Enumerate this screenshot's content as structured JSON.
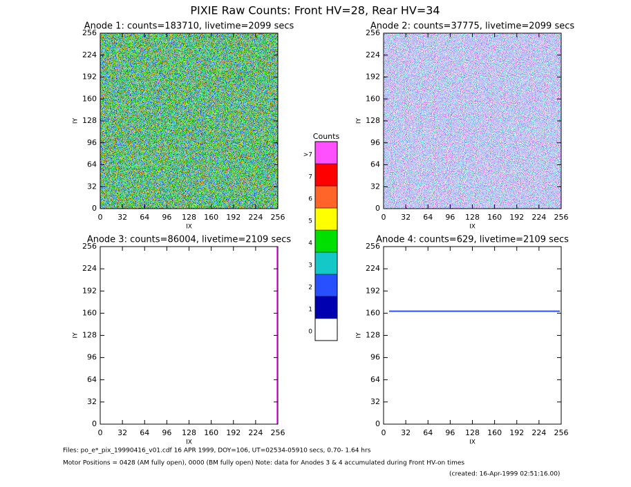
{
  "title": "PIXIE Raw Counts:  Front HV=28, Rear HV=34",
  "chart_data": [
    {
      "type": "heatmap",
      "title": "Anode 1: counts=183710, livetime=2099 secs",
      "xlabel": "IX",
      "ylabel": "IY",
      "xlim": [
        0,
        256
      ],
      "ylim": [
        0,
        256
      ],
      "xticks": [
        0,
        32,
        64,
        96,
        128,
        160,
        192,
        224,
        256
      ],
      "yticks": [
        0,
        32,
        64,
        96,
        128,
        160,
        192,
        224,
        256
      ]
    },
    {
      "type": "heatmap",
      "title": "Anode 2: counts=37775, livetime=2099 secs",
      "xlabel": "IX",
      "ylabel": "IY",
      "xlim": [
        0,
        256
      ],
      "ylim": [
        0,
        256
      ],
      "xticks": [
        0,
        32,
        64,
        96,
        128,
        160,
        192,
        224,
        256
      ],
      "yticks": [
        0,
        32,
        64,
        96,
        128,
        160,
        192,
        224,
        256
      ]
    },
    {
      "type": "heatmap",
      "title": "Anode 3: counts=86004, livetime=2109 secs",
      "xlabel": "IX",
      "ylabel": "IY",
      "xlim": [
        0,
        256
      ],
      "ylim": [
        0,
        256
      ],
      "xticks": [
        0,
        32,
        64,
        96,
        128,
        160,
        192,
        224,
        256
      ],
      "yticks": [
        0,
        32,
        64,
        96,
        128,
        160,
        192,
        224,
        256
      ]
    },
    {
      "type": "heatmap",
      "title": "Anode 4: counts=629, livetime=2109 secs",
      "xlabel": "IX",
      "ylabel": "IY",
      "xlim": [
        0,
        256
      ],
      "ylim": [
        0,
        256
      ],
      "xticks": [
        0,
        32,
        64,
        96,
        128,
        160,
        192,
        224,
        256
      ],
      "yticks": [
        0,
        32,
        64,
        96,
        128,
        160,
        192,
        224,
        256
      ]
    }
  ],
  "colorbar": {
    "title": "Counts",
    "labels": [
      "0",
      "1",
      "2",
      "3",
      "4",
      "5",
      "6",
      "7",
      ">7"
    ],
    "colors": [
      "#ffffff",
      "#0000b0",
      "#2850ff",
      "#14c8c8",
      "#00e000",
      "#ffff00",
      "#ff6428",
      "#ff0000",
      "#ff50ff"
    ]
  },
  "footer": {
    "files": "Files: po_e*_pix_19990416_v01.cdf    16 APR 1999, DOY=106, UT=02534-05910 secs,  0.70- 1.64 hrs",
    "motor": "Motor Positions = 0428 (AM fully open), 0000 (BM fully open)    Note: data for Anodes 3 & 4 accumulated during Front HV-on times",
    "created": "(created: 16-Apr-1999 02:51:16.00)"
  }
}
